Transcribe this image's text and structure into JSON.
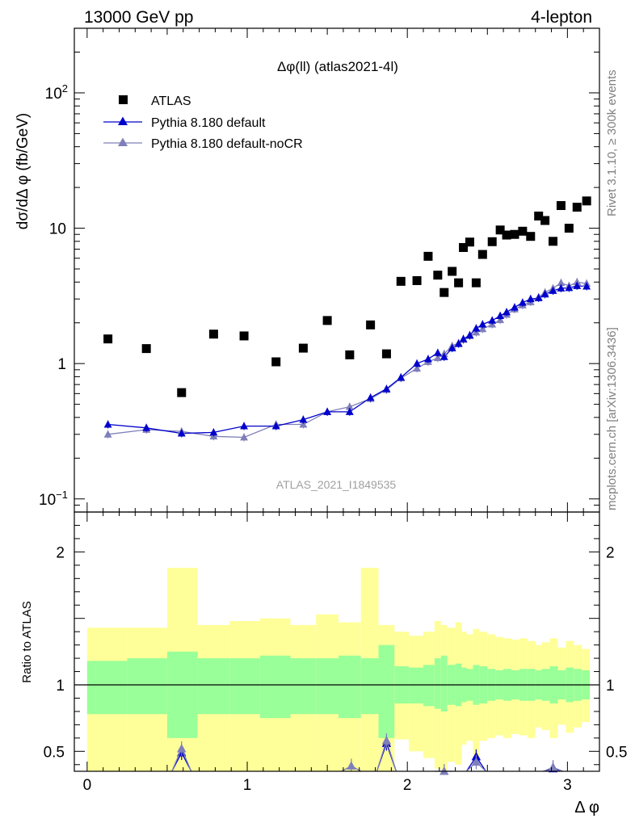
{
  "header": {
    "left": "13000 GeV pp",
    "right": "4-lepton"
  },
  "side_labels": {
    "right_top": "Rivet 3.1.10, ≥ 300k events",
    "right_bottom": "mcplots.cern.ch [arXiv:1306.3436]"
  },
  "chart_data": {
    "type": "scatter",
    "title": "Δφ(ll) (atlas2021-4l)",
    "analysis_tag": "ATLAS_2021_I1849535",
    "xlabel": "Δ φ",
    "ylabel": "dσ/dΔ φ (fb/GeV)",
    "ratio_ylabel": "Ratio to ATLAS",
    "xlim": [
      -0.08,
      3.2
    ],
    "ylim": [
      0.08,
      300
    ],
    "yscale": "log",
    "ratio_ylim": [
      0.35,
      2.3
    ],
    "x_ticks": [
      0,
      1,
      2,
      3
    ],
    "y_tick_labels": [
      {
        "value": 0.1,
        "base": "10",
        "exp": "−1"
      },
      {
        "value": 1,
        "base": "1",
        "exp": ""
      },
      {
        "value": 10,
        "base": "10",
        "exp": ""
      },
      {
        "value": 100,
        "base": "10",
        "exp": "2"
      }
    ],
    "ratio_ticks": [
      0.5,
      1,
      2
    ],
    "legend_position": "top-left",
    "series": [
      {
        "name": "ATLAS",
        "marker": "square",
        "color": "#000000",
        "points": [
          [
            0.13,
            1.52
          ],
          [
            0.37,
            1.29
          ],
          [
            0.59,
            0.61
          ],
          [
            0.79,
            1.65
          ],
          [
            0.98,
            1.6
          ],
          [
            1.18,
            1.03
          ],
          [
            1.35,
            1.3
          ],
          [
            1.5,
            2.08
          ],
          [
            1.64,
            1.16
          ],
          [
            1.77,
            1.93
          ],
          [
            1.87,
            1.18
          ],
          [
            1.96,
            4.05
          ],
          [
            2.06,
            4.1
          ],
          [
            2.13,
            6.2
          ],
          [
            2.19,
            4.5
          ],
          [
            2.23,
            3.35
          ],
          [
            2.28,
            4.8
          ],
          [
            2.32,
            3.95
          ],
          [
            2.35,
            7.2
          ],
          [
            2.39,
            7.9
          ],
          [
            2.43,
            3.95
          ],
          [
            2.47,
            6.4
          ],
          [
            2.53,
            7.95
          ],
          [
            2.58,
            9.7
          ],
          [
            2.62,
            8.9
          ],
          [
            2.67,
            9.0
          ],
          [
            2.72,
            9.5
          ],
          [
            2.77,
            8.7
          ],
          [
            2.82,
            12.3
          ],
          [
            2.86,
            11.4
          ],
          [
            2.91,
            8.0
          ],
          [
            2.96,
            14.7
          ],
          [
            3.01,
            10.0
          ],
          [
            3.06,
            14.3
          ],
          [
            3.12,
            15.9
          ]
        ]
      },
      {
        "name": "Pythia 8.180 default",
        "marker": "triangle",
        "color": "#0000cc",
        "points": [
          [
            0.13,
            0.355
          ],
          [
            0.37,
            0.335
          ],
          [
            0.59,
            0.305
          ],
          [
            0.79,
            0.31
          ],
          [
            0.98,
            0.345
          ],
          [
            1.18,
            0.345
          ],
          [
            1.35,
            0.385
          ],
          [
            1.5,
            0.44
          ],
          [
            1.64,
            0.44
          ],
          [
            1.77,
            0.56
          ],
          [
            1.87,
            0.65
          ],
          [
            1.96,
            0.79
          ],
          [
            2.06,
            1.0
          ],
          [
            2.13,
            1.08
          ],
          [
            2.19,
            1.2
          ],
          [
            2.23,
            1.12
          ],
          [
            2.28,
            1.3
          ],
          [
            2.32,
            1.4
          ],
          [
            2.35,
            1.52
          ],
          [
            2.39,
            1.62
          ],
          [
            2.43,
            1.82
          ],
          [
            2.47,
            1.95
          ],
          [
            2.53,
            2.08
          ],
          [
            2.58,
            2.25
          ],
          [
            2.62,
            2.4
          ],
          [
            2.67,
            2.6
          ],
          [
            2.72,
            2.82
          ],
          [
            2.77,
            3.0
          ],
          [
            2.82,
            3.05
          ],
          [
            2.86,
            3.25
          ],
          [
            2.91,
            3.45
          ],
          [
            2.96,
            3.6
          ],
          [
            3.01,
            3.62
          ],
          [
            3.06,
            3.75
          ],
          [
            3.12,
            3.72
          ]
        ],
        "ratio": [
          [
            0.59,
            0.49
          ],
          [
            1.87,
            0.56
          ],
          [
            2.43,
            0.46
          ],
          [
            2.91,
            0.37
          ]
        ]
      },
      {
        "name": "Pythia 8.180 default-noCR",
        "marker": "triangle",
        "color": "#7f7fba",
        "points": [
          [
            0.13,
            0.3
          ],
          [
            0.37,
            0.325
          ],
          [
            0.59,
            0.315
          ],
          [
            0.79,
            0.29
          ],
          [
            0.98,
            0.285
          ],
          [
            1.18,
            0.355
          ],
          [
            1.35,
            0.355
          ],
          [
            1.5,
            0.44
          ],
          [
            1.64,
            0.48
          ],
          [
            1.77,
            0.55
          ],
          [
            1.87,
            0.64
          ],
          [
            1.96,
            0.78
          ],
          [
            2.06,
            0.92
          ],
          [
            2.13,
            1.03
          ],
          [
            2.19,
            1.1
          ],
          [
            2.23,
            1.18
          ],
          [
            2.28,
            1.35
          ],
          [
            2.32,
            1.42
          ],
          [
            2.35,
            1.5
          ],
          [
            2.39,
            1.6
          ],
          [
            2.43,
            1.7
          ],
          [
            2.47,
            1.8
          ],
          [
            2.53,
            1.95
          ],
          [
            2.58,
            2.1
          ],
          [
            2.62,
            2.3
          ],
          [
            2.67,
            2.52
          ],
          [
            2.72,
            2.7
          ],
          [
            2.77,
            2.85
          ],
          [
            2.82,
            3.1
          ],
          [
            2.86,
            3.35
          ],
          [
            2.91,
            3.6
          ],
          [
            2.96,
            3.95
          ],
          [
            3.01,
            3.75
          ],
          [
            3.06,
            4.0
          ],
          [
            3.12,
            3.9
          ]
        ],
        "ratio": [
          [
            0.59,
            0.52
          ],
          [
            1.65,
            0.39
          ],
          [
            1.87,
            0.58
          ],
          [
            2.23,
            0.35
          ],
          [
            2.43,
            0.42
          ],
          [
            2.91,
            0.38
          ]
        ]
      }
    ],
    "uncertainty_bands": {
      "inner_color": "#99ff99",
      "outer_color": "#ffff99",
      "bins": [
        {
          "x": [
            0.0,
            0.25
          ],
          "inner": [
            0.78,
            1.18
          ],
          "outer": [
            0.35,
            1.43
          ]
        },
        {
          "x": [
            0.25,
            0.5
          ],
          "inner": [
            0.78,
            1.2
          ],
          "outer": [
            0.35,
            1.43
          ]
        },
        {
          "x": [
            0.5,
            0.69
          ],
          "inner": [
            0.6,
            1.25
          ],
          "outer": [
            0.35,
            1.88
          ]
        },
        {
          "x": [
            0.69,
            0.89
          ],
          "inner": [
            0.78,
            1.2
          ],
          "outer": [
            0.35,
            1.45
          ]
        },
        {
          "x": [
            0.89,
            1.08
          ],
          "inner": [
            0.78,
            1.2
          ],
          "outer": [
            0.35,
            1.48
          ]
        },
        {
          "x": [
            1.08,
            1.27
          ],
          "inner": [
            0.75,
            1.22
          ],
          "outer": [
            0.35,
            1.5
          ]
        },
        {
          "x": [
            1.27,
            1.43
          ],
          "inner": [
            0.78,
            1.2
          ],
          "outer": [
            0.35,
            1.45
          ]
        },
        {
          "x": [
            1.43,
            1.57
          ],
          "inner": [
            0.78,
            1.2
          ],
          "outer": [
            0.35,
            1.53
          ]
        },
        {
          "x": [
            1.57,
            1.71
          ],
          "inner": [
            0.75,
            1.22
          ],
          "outer": [
            0.35,
            1.47
          ]
        },
        {
          "x": [
            1.71,
            1.82
          ],
          "inner": [
            0.78,
            1.2
          ],
          "outer": [
            0.35,
            1.88
          ]
        },
        {
          "x": [
            1.82,
            1.92
          ],
          "inner": [
            0.6,
            1.3
          ],
          "outer": [
            0.35,
            1.45
          ]
        },
        {
          "x": [
            1.92,
            2.01
          ],
          "inner": [
            0.86,
            1.14
          ],
          "outer": [
            0.59,
            1.4
          ]
        },
        {
          "x": [
            2.01,
            2.1
          ],
          "inner": [
            0.86,
            1.13
          ],
          "outer": [
            0.5,
            1.37
          ]
        },
        {
          "x": [
            2.1,
            2.17
          ],
          "inner": [
            0.84,
            1.15
          ],
          "outer": [
            0.45,
            1.4
          ]
        },
        {
          "x": [
            2.17,
            2.21
          ],
          "inner": [
            0.82,
            1.2
          ],
          "outer": [
            0.37,
            1.48
          ]
        },
        {
          "x": [
            2.21,
            2.25
          ],
          "inner": [
            0.8,
            1.22
          ],
          "outer": [
            0.35,
            1.45
          ]
        },
        {
          "x": [
            2.25,
            2.3
          ],
          "inner": [
            0.85,
            1.15
          ],
          "outer": [
            0.42,
            1.43
          ]
        },
        {
          "x": [
            2.3,
            2.34
          ],
          "inner": [
            0.84,
            1.16
          ],
          "outer": [
            0.4,
            1.47
          ]
        },
        {
          "x": [
            2.34,
            2.37
          ],
          "inner": [
            0.87,
            1.13
          ],
          "outer": [
            0.55,
            1.4
          ]
        },
        {
          "x": [
            2.37,
            2.41
          ],
          "inner": [
            0.88,
            1.12
          ],
          "outer": [
            0.58,
            1.38
          ]
        },
        {
          "x": [
            2.41,
            2.45
          ],
          "inner": [
            0.85,
            1.15
          ],
          "outer": [
            0.45,
            1.42
          ]
        },
        {
          "x": [
            2.45,
            2.5
          ],
          "inner": [
            0.86,
            1.14
          ],
          "outer": [
            0.58,
            1.4
          ]
        },
        {
          "x": [
            2.5,
            2.55
          ],
          "inner": [
            0.88,
            1.12
          ],
          "outer": [
            0.6,
            1.38
          ]
        },
        {
          "x": [
            2.55,
            2.6
          ],
          "inner": [
            0.89,
            1.11
          ],
          "outer": [
            0.62,
            1.36
          ]
        },
        {
          "x": [
            2.6,
            2.65
          ],
          "inner": [
            0.88,
            1.12
          ],
          "outer": [
            0.6,
            1.35
          ]
        },
        {
          "x": [
            2.65,
            2.7
          ],
          "inner": [
            0.89,
            1.11
          ],
          "outer": [
            0.63,
            1.34
          ]
        },
        {
          "x": [
            2.7,
            2.75
          ],
          "inner": [
            0.88,
            1.12
          ],
          "outer": [
            0.62,
            1.35
          ]
        },
        {
          "x": [
            2.75,
            2.8
          ],
          "inner": [
            0.88,
            1.12
          ],
          "outer": [
            0.6,
            1.33
          ]
        },
        {
          "x": [
            2.8,
            2.84
          ],
          "inner": [
            0.89,
            1.11
          ],
          "outer": [
            0.68,
            1.3
          ]
        },
        {
          "x": [
            2.84,
            2.89
          ],
          "inner": [
            0.88,
            1.12
          ],
          "outer": [
            0.66,
            1.32
          ]
        },
        {
          "x": [
            2.89,
            2.94
          ],
          "inner": [
            0.86,
            1.14
          ],
          "outer": [
            0.6,
            1.35
          ]
        },
        {
          "x": [
            2.94,
            2.99
          ],
          "inner": [
            0.89,
            1.11
          ],
          "outer": [
            0.7,
            1.28
          ]
        },
        {
          "x": [
            2.99,
            3.04
          ],
          "inner": [
            0.87,
            1.13
          ],
          "outer": [
            0.64,
            1.33
          ]
        },
        {
          "x": [
            3.04,
            3.09
          ],
          "inner": [
            0.88,
            1.12
          ],
          "outer": [
            0.68,
            1.3
          ]
        },
        {
          "x": [
            3.09,
            3.14
          ],
          "inner": [
            0.89,
            1.11
          ],
          "outer": [
            0.72,
            1.27
          ]
        }
      ]
    }
  }
}
